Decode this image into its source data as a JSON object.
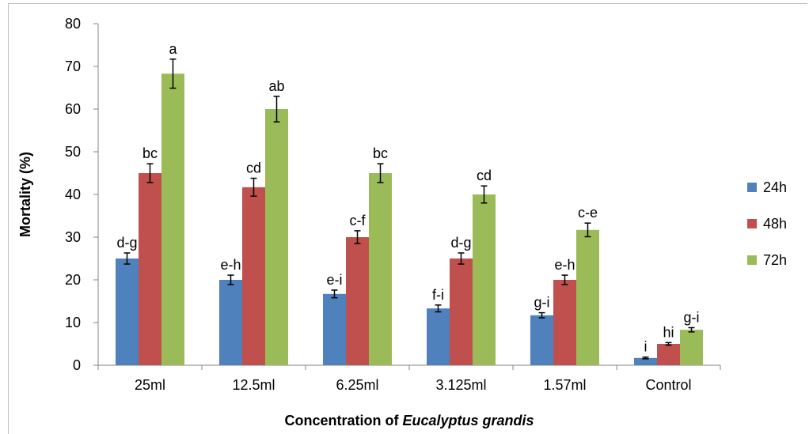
{
  "chart_data": {
    "type": "bar",
    "categories": [
      "25ml",
      "12.5ml",
      "6.25ml",
      "3.125ml",
      "1.57ml",
      "Control"
    ],
    "series": [
      {
        "name": "24h",
        "color": "#4F81BD",
        "values": [
          25,
          20,
          16.7,
          13.3,
          11.7,
          1.7
        ],
        "errors": [
          1.3,
          1.1,
          0.9,
          0.8,
          0.6,
          0.2
        ],
        "labels": [
          "d-g",
          "e-h",
          "e-i",
          "f-i",
          "g-i",
          "i"
        ]
      },
      {
        "name": "48h",
        "color": "#C0504D",
        "values": [
          45,
          41.7,
          30,
          25,
          20,
          5
        ],
        "errors": [
          2.2,
          2.1,
          1.5,
          1.3,
          1.1,
          0.3
        ],
        "labels": [
          "bc",
          "cd",
          "c-f",
          "d-g",
          "e-h",
          "hi"
        ]
      },
      {
        "name": "72h",
        "color": "#9BBB59",
        "values": [
          68.3,
          60,
          45,
          40,
          31.7,
          8.3
        ],
        "errors": [
          3.4,
          3.0,
          2.2,
          2.0,
          1.6,
          0.5
        ],
        "labels": [
          "a",
          "ab",
          "bc",
          "cd",
          "c-e",
          "g-i"
        ]
      }
    ],
    "yticks": [
      0,
      10,
      20,
      30,
      40,
      50,
      60,
      70,
      80
    ],
    "ylim": [
      0,
      80
    ],
    "ylabel": "Mortality (%)",
    "xlabel_parts": [
      {
        "text": "Concentration of ",
        "italic": false
      },
      {
        "text": "Eucalyptus grandis",
        "italic": true
      }
    ],
    "grid": false,
    "legend_position": "right"
  }
}
